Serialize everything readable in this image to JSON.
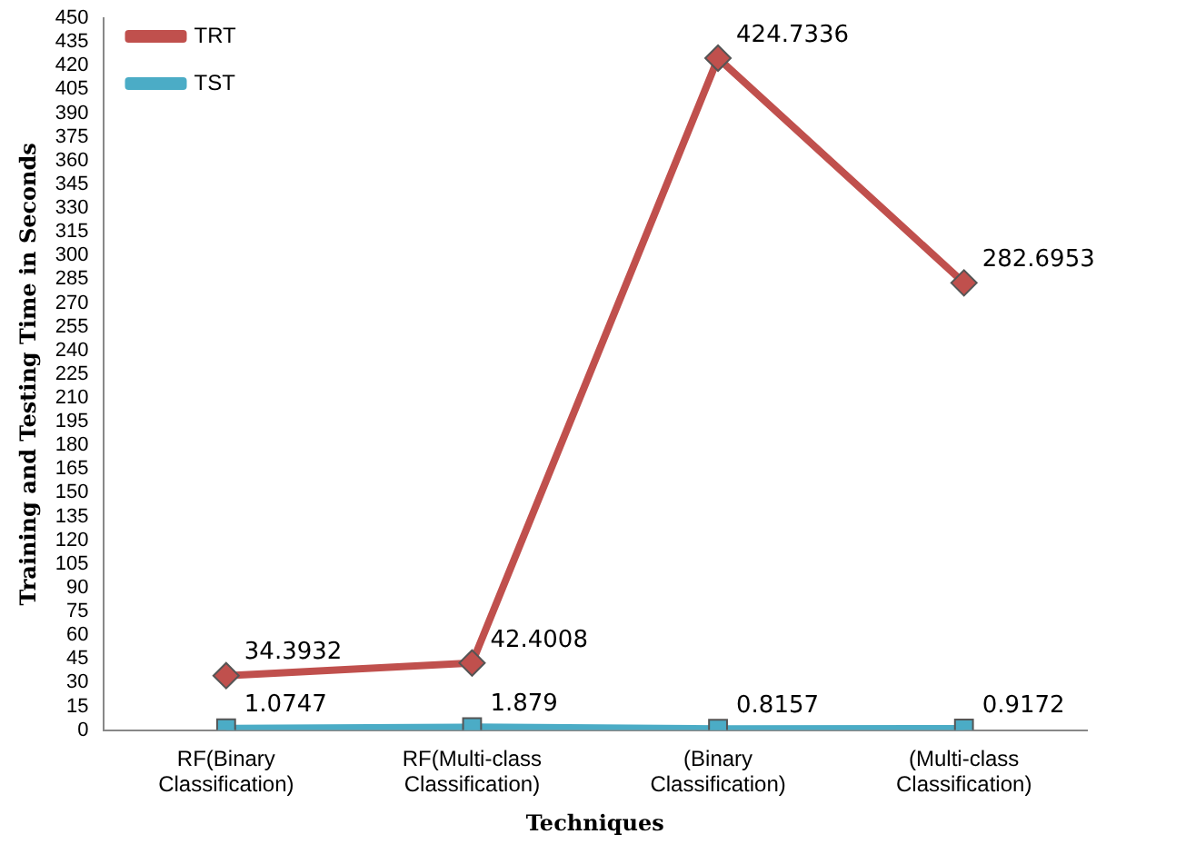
{
  "chart_data": {
    "type": "line",
    "xlabel": "Techniques",
    "ylabel": "Training and Testing Time in Seconds",
    "categories": [
      "RF(Binary Classification)",
      "RF(Multi-class Classification)",
      "(Binary Classification)",
      "(Multi-class Classification)"
    ],
    "series": [
      {
        "name": "TRT",
        "color": "#c0504d",
        "marker": "diamond",
        "values": [
          34.3932,
          42.4008,
          424.7336,
          282.6953
        ]
      },
      {
        "name": "TST",
        "color": "#4bacc6",
        "marker": "square",
        "values": [
          1.0747,
          1.879,
          0.8157,
          0.9172
        ]
      }
    ],
    "ylim": [
      0,
      450
    ],
    "yticks": [
      0,
      15,
      30,
      45,
      60,
      75,
      90,
      105,
      120,
      135,
      150,
      165,
      180,
      195,
      210,
      225,
      240,
      255,
      270,
      285,
      300,
      315,
      330,
      345,
      360,
      375,
      390,
      405,
      420,
      435,
      450
    ],
    "grid": false,
    "legend": "top left",
    "data_labels": true
  }
}
